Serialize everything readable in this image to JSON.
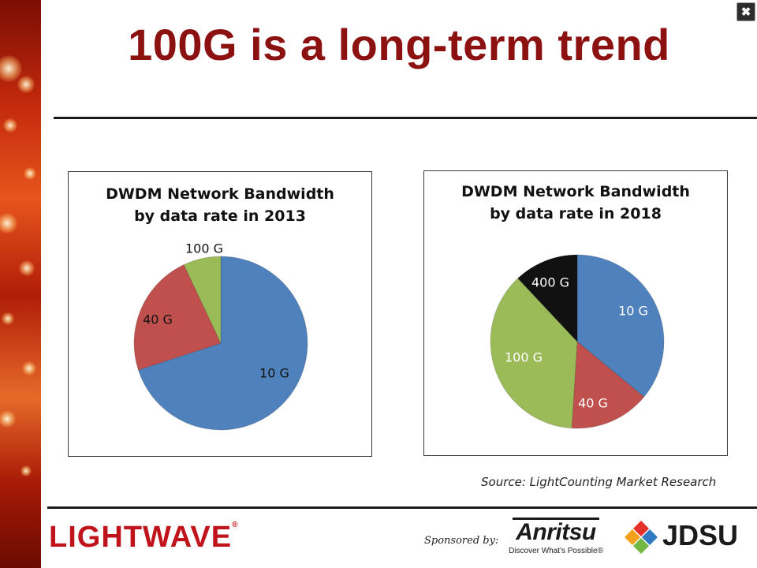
{
  "slide": {
    "title": "100G is a long-term trend",
    "source": "Source: LightCounting Market Research",
    "close_label": "✖"
  },
  "footer": {
    "brand": "LIGHTWAVE",
    "brand_mark": "®",
    "sponsored_label": "Sponsored by:",
    "sponsor1_name": "Anritsu",
    "sponsor1_tagline": "Discover What's Possible®",
    "sponsor2_name": "JDSU"
  },
  "chart_data": [
    {
      "type": "pie",
      "title_line1": "DWDM Network Bandwidth",
      "title_line2": "by data rate in 2013",
      "slices": [
        {
          "label": "10 G",
          "value": 70,
          "color": "#4f81bd"
        },
        {
          "label": "40 G",
          "value": 23,
          "color": "#c0504d"
        },
        {
          "label": "100 G",
          "value": 7,
          "color": "#9bbb59"
        }
      ]
    },
    {
      "type": "pie",
      "title_line1": "DWDM Network Bandwidth",
      "title_line2": "by data rate in 2018",
      "slices": [
        {
          "label": "10 G",
          "value": 36,
          "color": "#4f81bd"
        },
        {
          "label": "40 G",
          "value": 15,
          "color": "#c0504d"
        },
        {
          "label": "100 G",
          "value": 37,
          "color": "#9bbb59"
        },
        {
          "label": "400 G",
          "value": 12,
          "color": "#111111"
        }
      ]
    }
  ]
}
